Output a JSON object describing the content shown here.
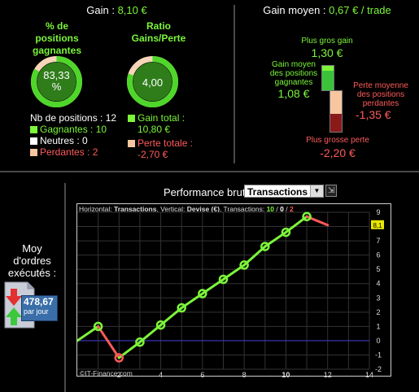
{
  "left_panel": {
    "gain_label": "Gain :",
    "gain_value": "8,10 €",
    "pct_title": [
      "% de",
      "positions",
      "gagnantes"
    ],
    "pct_value_1": "83,33",
    "pct_value_2": "%",
    "pct_ring_fraction": 0.8333,
    "ratio_title": [
      "Ratio",
      "Gains/Perte"
    ],
    "ratio_value": "4,00",
    "ratio_ring_fraction": 0.8,
    "nb_positions": "Nb de positions : 12",
    "gagnantes": "Gagnantes : 10",
    "neutres": "Neutres : 0",
    "perdantes": "Perdantes : 2",
    "gain_total_label": "Gain total :",
    "gain_total_value": "10,80 €",
    "perte_totale_label": "Perte totale :",
    "perte_totale_value": "-2,70 €"
  },
  "right_panel": {
    "gain_moyen_label": "Gain moyen :",
    "gain_moyen_value": "0,67 € / trade",
    "plus_gros_gain_label": "Plus gros gain",
    "plus_gros_gain_value": "1,30 €",
    "gain_moyen_positions_label": [
      "Gain moyen",
      "des positions",
      "gagnantes"
    ],
    "gain_moyen_positions_value": "1,08 €",
    "perte_moyenne_label": [
      "Perte moyenne",
      "des positions",
      "perdantes"
    ],
    "perte_moyenne_value": "-1,35 €",
    "plus_grosse_perte_label": "Plus grosse perte",
    "plus_grosse_perte_value": "-2,20 €"
  },
  "bottom": {
    "moy_label": [
      "Moy",
      "d'ordres",
      "exécutés :"
    ],
    "moy_value": "478,67",
    "moy_unit": "par jour",
    "perf_label": "Performance brute",
    "combo_value": "Transactions",
    "combo_arrow": "▼",
    "combo_btn": "⇲",
    "chart_header_prefix": "Horizontal: ",
    "chart_header_h": "Transactions",
    "chart_header_mid": ", Vertical: ",
    "chart_header_v": "Devise (€)",
    "chart_header_mid2": ", Transactions: ",
    "chart_header_n1": "10",
    "chart_header_sep": " / ",
    "chart_header_n2": "0",
    "chart_header_n3": "2",
    "watermark": "©IT-Finance.com",
    "last_value_tag": "8,1"
  },
  "colors": {
    "green": "#7cf53a",
    "red": "#ff5a5a",
    "ring_green": "#4fd62a",
    "ring_bg": "#f6d6b8",
    "zero_line": "#3a3acc"
  },
  "chart_data": {
    "type": "line",
    "x": [
      0,
      1,
      2,
      3,
      4,
      5,
      6,
      7,
      8,
      9,
      10,
      11,
      12
    ],
    "values": [
      0,
      1,
      -1.2,
      -0.1,
      1.1,
      2.3,
      3.3,
      4.3,
      5.3,
      6.6,
      7.6,
      8.7,
      8.1
    ],
    "point_outcome": [
      "",
      "win",
      "loss",
      "win",
      "win",
      "win",
      "win",
      "win",
      "win",
      "win",
      "win",
      "win",
      "loss"
    ],
    "xlim": [
      0,
      14
    ],
    "ylim": [
      -2,
      9
    ],
    "x_ticks": [
      "2",
      "4",
      "6",
      "8",
      "10",
      "12",
      "14"
    ],
    "y_ticks": [
      "-2",
      "-1",
      "0",
      "1",
      "2",
      "3",
      "4",
      "5",
      "6",
      "7",
      "8",
      "9"
    ],
    "xlabel": "Transactions",
    "ylabel": "Devise (€)",
    "grid": true
  }
}
